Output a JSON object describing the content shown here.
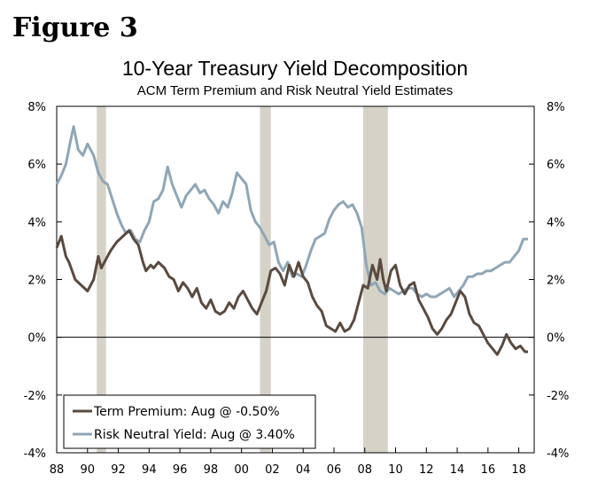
{
  "figure_label": "Figure 3",
  "colors": {
    "term_premium": "#5a4a3f",
    "risk_neutral": "#8fa6b6",
    "recession": "#d6d2c8"
  },
  "chart_data": {
    "type": "line",
    "title": "10-Year Treasury Yield Decomposition",
    "subtitle": "ACM Term Premium and Risk Neutral Yield Estimates",
    "xlim": [
      1988,
      2019
    ],
    "ylim": [
      -4,
      8
    ],
    "x_ticks": [
      {
        "value": 1988,
        "label": "88"
      },
      {
        "value": 1990,
        "label": "90"
      },
      {
        "value": 1992,
        "label": "92"
      },
      {
        "value": 1994,
        "label": "94"
      },
      {
        "value": 1996,
        "label": "96"
      },
      {
        "value": 1998,
        "label": "98"
      },
      {
        "value": 2000,
        "label": "00"
      },
      {
        "value": 2002,
        "label": "02"
      },
      {
        "value": 2004,
        "label": "04"
      },
      {
        "value": 2006,
        "label": "06"
      },
      {
        "value": 2008,
        "label": "08"
      },
      {
        "value": 2010,
        "label": "10"
      },
      {
        "value": 2012,
        "label": "12"
      },
      {
        "value": 2014,
        "label": "14"
      },
      {
        "value": 2016,
        "label": "16"
      },
      {
        "value": 2018,
        "label": "18"
      }
    ],
    "y_ticks": [
      {
        "value": 8,
        "label": "8%"
      },
      {
        "value": 6,
        "label": "6%"
      },
      {
        "value": 4,
        "label": "4%"
      },
      {
        "value": 2,
        "label": "2%"
      },
      {
        "value": 0,
        "label": "0%"
      },
      {
        "value": -2,
        "label": "-2%"
      },
      {
        "value": -4,
        "label": "-4%"
      }
    ],
    "recessions": [
      [
        1990.6,
        1991.2
      ],
      [
        2001.2,
        2001.9
      ],
      [
        2007.9,
        2009.5
      ]
    ],
    "legend": {
      "location": "lower-left",
      "entries": [
        "Term Premium: Aug @ -0.50%",
        "Risk Neutral Yield: Aug @ 3.40%"
      ]
    },
    "series": [
      {
        "name": "Term Premium",
        "x": [
          1988.0,
          1988.3,
          1988.6,
          1988.8,
          1989.2,
          1989.6,
          1990.0,
          1990.4,
          1990.7,
          1990.9,
          1991.2,
          1991.5,
          1991.9,
          1992.3,
          1992.7,
          1993.0,
          1993.3,
          1993.6,
          1993.8,
          1994.1,
          1994.3,
          1994.6,
          1995.0,
          1995.3,
          1995.6,
          1995.9,
          1996.2,
          1996.5,
          1996.8,
          1997.1,
          1997.4,
          1997.7,
          1998.0,
          1998.3,
          1998.6,
          1998.9,
          1999.2,
          1999.5,
          1999.8,
          2000.1,
          2000.4,
          2000.7,
          2001.0,
          2001.3,
          2001.6,
          2001.9,
          2002.2,
          2002.5,
          2002.8,
          2003.1,
          2003.4,
          2003.7,
          2004.0,
          2004.3,
          2004.6,
          2004.9,
          2005.2,
          2005.5,
          2005.8,
          2006.1,
          2006.4,
          2006.7,
          2007.0,
          2007.3,
          2007.6,
          2007.9,
          2008.2,
          2008.5,
          2008.8,
          2009.0,
          2009.2,
          2009.4,
          2009.7,
          2010.0,
          2010.3,
          2010.6,
          2010.9,
          2011.2,
          2011.5,
          2011.8,
          2012.1,
          2012.4,
          2012.7,
          2013.0,
          2013.3,
          2013.6,
          2013.9,
          2014.2,
          2014.5,
          2014.8,
          2015.1,
          2015.4,
          2015.7,
          2016.0,
          2016.3,
          2016.6,
          2016.9,
          2017.2,
          2017.5,
          2017.8,
          2018.1,
          2018.4,
          2018.6
        ],
        "values": [
          3.1,
          3.5,
          2.8,
          2.6,
          2.0,
          1.8,
          1.6,
          2.0,
          2.8,
          2.4,
          2.7,
          3.0,
          3.3,
          3.5,
          3.7,
          3.4,
          3.2,
          2.6,
          2.3,
          2.5,
          2.4,
          2.6,
          2.4,
          2.1,
          2.0,
          1.6,
          1.9,
          1.7,
          1.4,
          1.7,
          1.2,
          1.0,
          1.3,
          0.9,
          0.8,
          0.9,
          1.2,
          1.0,
          1.4,
          1.6,
          1.3,
          1.0,
          0.8,
          1.2,
          1.6,
          2.3,
          2.4,
          2.2,
          1.8,
          2.5,
          2.1,
          2.6,
          2.1,
          1.9,
          1.4,
          1.1,
          0.9,
          0.4,
          0.3,
          0.2,
          0.5,
          0.2,
          0.3,
          0.6,
          1.2,
          1.8,
          1.7,
          2.5,
          2.0,
          2.7,
          2.0,
          1.6,
          2.3,
          2.5,
          1.8,
          1.5,
          1.8,
          1.9,
          1.3,
          1.0,
          0.7,
          0.3,
          0.1,
          0.3,
          0.6,
          0.8,
          1.2,
          1.6,
          1.4,
          0.8,
          0.5,
          0.4,
          0.1,
          -0.2,
          -0.4,
          -0.6,
          -0.3,
          0.1,
          -0.2,
          -0.4,
          -0.3,
          -0.5,
          -0.5
        ]
      },
      {
        "name": "Risk Neutral Yield",
        "x": [
          1988.0,
          1988.3,
          1988.6,
          1988.9,
          1989.1,
          1989.4,
          1989.7,
          1990.0,
          1990.4,
          1990.7,
          1991.0,
          1991.3,
          1991.6,
          1991.9,
          1992.2,
          1992.5,
          1992.8,
          1993.1,
          1993.4,
          1993.7,
          1994.0,
          1994.3,
          1994.6,
          1994.9,
          1995.2,
          1995.5,
          1995.8,
          1996.1,
          1996.4,
          1996.7,
          1997.0,
          1997.3,
          1997.6,
          1997.9,
          1998.2,
          1998.5,
          1998.8,
          1999.1,
          1999.4,
          1999.7,
          2000.0,
          2000.3,
          2000.6,
          2000.9,
          2001.2,
          2001.5,
          2001.8,
          2002.1,
          2002.4,
          2002.7,
          2003.0,
          2003.3,
          2003.6,
          2003.9,
          2004.2,
          2004.5,
          2004.8,
          2005.1,
          2005.4,
          2005.7,
          2006.0,
          2006.3,
          2006.6,
          2006.9,
          2007.2,
          2007.5,
          2007.8,
          2008.1,
          2008.4,
          2008.7,
          2009.0,
          2009.3,
          2009.6,
          2009.9,
          2010.2,
          2010.5,
          2010.8,
          2011.1,
          2011.4,
          2011.7,
          2012.0,
          2012.3,
          2012.6,
          2012.9,
          2013.2,
          2013.5,
          2013.8,
          2014.1,
          2014.4,
          2014.7,
          2015.0,
          2015.3,
          2015.6,
          2015.9,
          2016.2,
          2016.5,
          2016.8,
          2017.1,
          2017.4,
          2017.7,
          2018.0,
          2018.3,
          2018.6
        ],
        "values": [
          5.3,
          5.6,
          6.0,
          6.8,
          7.3,
          6.5,
          6.3,
          6.7,
          6.3,
          5.7,
          5.4,
          5.3,
          4.8,
          4.3,
          3.9,
          3.6,
          3.7,
          3.4,
          3.3,
          3.7,
          4.0,
          4.7,
          4.8,
          5.1,
          5.9,
          5.3,
          4.9,
          4.5,
          4.9,
          5.1,
          5.3,
          5.0,
          5.1,
          4.8,
          4.6,
          4.3,
          4.7,
          4.5,
          5.0,
          5.7,
          5.5,
          5.3,
          4.4,
          4.0,
          3.8,
          3.5,
          3.2,
          3.3,
          2.6,
          2.3,
          2.6,
          2.1,
          2.2,
          2.1,
          2.5,
          3.0,
          3.4,
          3.5,
          3.6,
          4.1,
          4.4,
          4.6,
          4.7,
          4.5,
          4.6,
          4.3,
          3.8,
          2.5,
          1.8,
          1.9,
          1.6,
          1.5,
          1.7,
          1.6,
          1.5,
          1.6,
          1.7,
          1.7,
          1.5,
          1.4,
          1.5,
          1.4,
          1.4,
          1.5,
          1.6,
          1.7,
          1.4,
          1.6,
          1.8,
          2.1,
          2.1,
          2.2,
          2.2,
          2.3,
          2.3,
          2.4,
          2.5,
          2.6,
          2.6,
          2.8,
          3.0,
          3.4,
          3.4
        ]
      }
    ]
  }
}
